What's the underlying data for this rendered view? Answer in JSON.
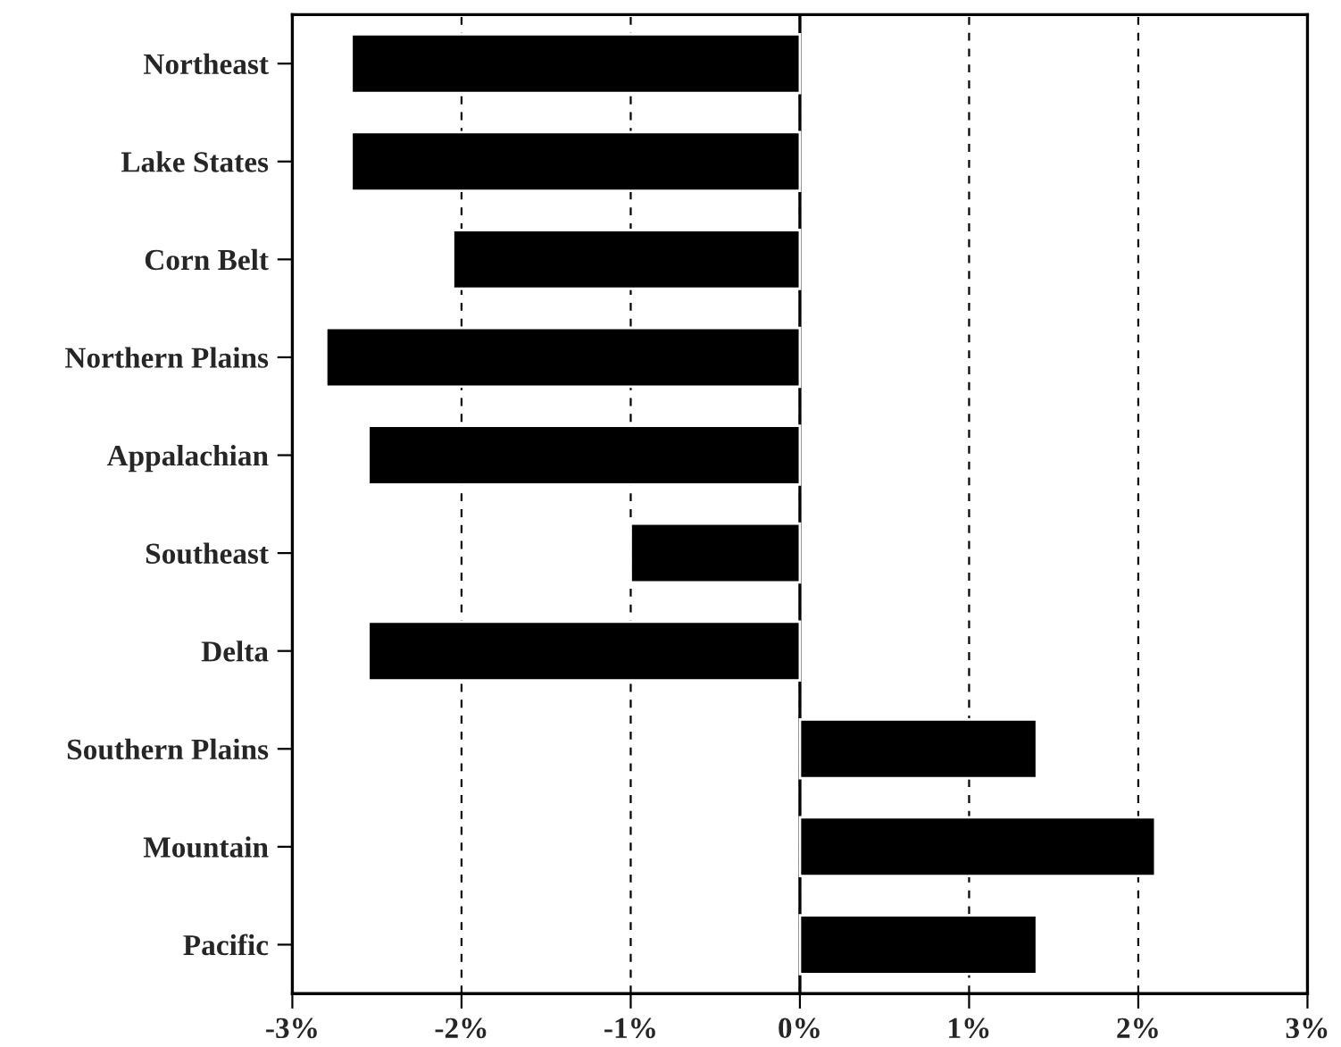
{
  "chart_data": {
    "type": "bar",
    "orientation": "horizontal",
    "categories": [
      "Northeast",
      "Lake States",
      "Corn Belt",
      "Northern Plains",
      "Appalachian",
      "Southeast",
      "Delta",
      "Southern Plains",
      "Mountain",
      "Pacific"
    ],
    "values": [
      -2.65,
      -2.65,
      -2.05,
      -2.8,
      -2.55,
      -1.0,
      -2.55,
      1.4,
      2.1,
      1.4
    ],
    "color": "#000000",
    "xlim": [
      -3,
      3
    ],
    "xticks": [
      {
        "value": -3,
        "label": "-3%"
      },
      {
        "value": -2,
        "label": "-2%"
      },
      {
        "value": -1,
        "label": "-1%"
      },
      {
        "value": 0,
        "label": "0%"
      },
      {
        "value": 1,
        "label": "1%"
      },
      {
        "value": 2,
        "label": "2%"
      },
      {
        "value": 3,
        "label": "3%"
      }
    ],
    "grid": "x",
    "ref_lines": [
      {
        "axis": "x",
        "value": 0,
        "color": "#000000",
        "line_style": "solid"
      }
    ]
  }
}
